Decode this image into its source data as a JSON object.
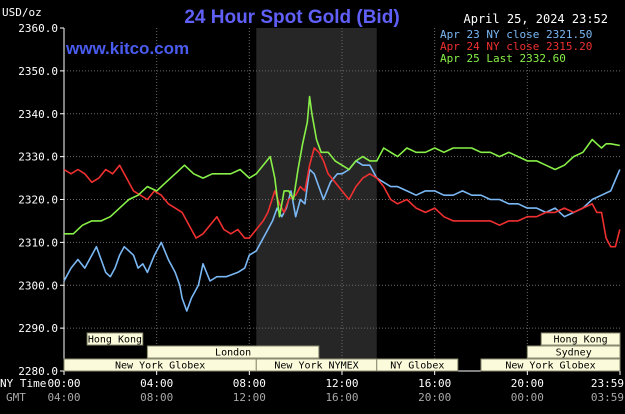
{
  "chart_data": {
    "type": "line",
    "title": "24 Hour Spot Gold (Bid)",
    "site": "www.kitco.com",
    "timestamp": "April 25, 2024 23:52",
    "unit_label": "USD/oz",
    "ylim": [
      2280,
      2360
    ],
    "y_ticks": [
      "2360.0",
      "2350.0",
      "2340.0",
      "2330.0",
      "2320.0",
      "2310.0",
      "2300.0",
      "2290.0",
      "2280.0"
    ],
    "x_label_primary": "NY Time",
    "x_label_secondary": "GMT",
    "x_ticks_ny": [
      "00:00",
      "04:00",
      "08:00",
      "12:00",
      "16:00",
      "20:00",
      "23:59"
    ],
    "x_ticks_gmt": [
      "04:00",
      "08:00",
      "12:00",
      "16:00",
      "20:00",
      "00:00",
      "03:59"
    ],
    "legend_position": "top-right",
    "grid": true,
    "highlight_band_hours": [
      8.3,
      13.5
    ],
    "sessions": [
      {
        "label": "Hong Kong",
        "row": 1,
        "start": 1.0,
        "end": 3.4
      },
      {
        "label": "Hong Kong",
        "row": 1,
        "start": 20.6,
        "end": 24.0
      },
      {
        "label": "London",
        "row": 2,
        "start": 3.6,
        "end": 11.0
      },
      {
        "label": "Sydney",
        "row": 2,
        "start": 20.0,
        "end": 24.0
      },
      {
        "label": "New York Globex",
        "row": 3,
        "start": 0.0,
        "end": 8.3
      },
      {
        "label": "New York NYMEX",
        "row": 3,
        "start": 8.3,
        "end": 13.5
      },
      {
        "label": "NY Globex",
        "row": 3,
        "start": 13.5,
        "end": 17.0
      },
      {
        "label": "New York Globex",
        "row": 3,
        "start": 18.0,
        "end": 24.0
      }
    ],
    "series": [
      {
        "name": "Apr 23 NY close 2321.50",
        "color": "#7ab8f5",
        "points": [
          [
            0.0,
            2301
          ],
          [
            0.3,
            2304
          ],
          [
            0.6,
            2306
          ],
          [
            0.9,
            2304
          ],
          [
            1.2,
            2307
          ],
          [
            1.4,
            2309
          ],
          [
            1.6,
            2306
          ],
          [
            1.8,
            2303
          ],
          [
            2.0,
            2302
          ],
          [
            2.2,
            2304
          ],
          [
            2.4,
            2307
          ],
          [
            2.6,
            2309
          ],
          [
            2.8,
            2308
          ],
          [
            3.0,
            2307
          ],
          [
            3.2,
            2304
          ],
          [
            3.4,
            2305
          ],
          [
            3.6,
            2303
          ],
          [
            3.9,
            2307
          ],
          [
            4.2,
            2310
          ],
          [
            4.5,
            2306
          ],
          [
            4.8,
            2303
          ],
          [
            5.0,
            2300
          ],
          [
            5.1,
            2297
          ],
          [
            5.3,
            2294
          ],
          [
            5.5,
            2297
          ],
          [
            5.8,
            2300
          ],
          [
            6.0,
            2305
          ],
          [
            6.3,
            2301
          ],
          [
            6.6,
            2302
          ],
          [
            7.0,
            2302
          ],
          [
            7.5,
            2303
          ],
          [
            7.8,
            2304
          ],
          [
            8.0,
            2307
          ],
          [
            8.3,
            2308
          ],
          [
            8.6,
            2311
          ],
          [
            8.8,
            2313
          ],
          [
            9.0,
            2315
          ],
          [
            9.2,
            2318
          ],
          [
            9.4,
            2316
          ],
          [
            9.6,
            2318
          ],
          [
            9.8,
            2322
          ],
          [
            10.0,
            2316
          ],
          [
            10.2,
            2320
          ],
          [
            10.4,
            2319
          ],
          [
            10.6,
            2327
          ],
          [
            10.8,
            2326
          ],
          [
            11.0,
            2323
          ],
          [
            11.2,
            2320
          ],
          [
            11.5,
            2324
          ],
          [
            11.8,
            2326
          ],
          [
            12.0,
            2326
          ],
          [
            12.3,
            2327
          ],
          [
            12.6,
            2329
          ],
          [
            12.9,
            2328
          ],
          [
            13.2,
            2328
          ],
          [
            13.5,
            2325
          ],
          [
            13.8,
            2324
          ],
          [
            14.1,
            2323
          ],
          [
            14.4,
            2323
          ],
          [
            14.8,
            2322
          ],
          [
            15.2,
            2321
          ],
          [
            15.6,
            2322
          ],
          [
            16.0,
            2322
          ],
          [
            16.4,
            2321
          ],
          [
            16.8,
            2321
          ],
          [
            17.2,
            2322
          ],
          [
            17.6,
            2321
          ],
          [
            18.0,
            2321
          ],
          [
            18.4,
            2320
          ],
          [
            18.8,
            2320
          ],
          [
            19.2,
            2319
          ],
          [
            19.6,
            2319
          ],
          [
            20.0,
            2318
          ],
          [
            20.4,
            2318
          ],
          [
            20.8,
            2317
          ],
          [
            21.2,
            2318
          ],
          [
            21.6,
            2316
          ],
          [
            22.0,
            2317
          ],
          [
            22.4,
            2318
          ],
          [
            22.8,
            2320
          ],
          [
            23.2,
            2321
          ],
          [
            23.6,
            2322
          ],
          [
            23.99,
            2327
          ]
        ]
      },
      {
        "name": "Apr 24 NY close 2315.20",
        "color": "#f03030",
        "points": [
          [
            0.0,
            2327
          ],
          [
            0.3,
            2326
          ],
          [
            0.6,
            2327
          ],
          [
            0.9,
            2326
          ],
          [
            1.2,
            2324
          ],
          [
            1.5,
            2325
          ],
          [
            1.8,
            2327
          ],
          [
            2.1,
            2326
          ],
          [
            2.4,
            2328
          ],
          [
            2.7,
            2325
          ],
          [
            3.0,
            2322
          ],
          [
            3.3,
            2321
          ],
          [
            3.6,
            2320
          ],
          [
            3.9,
            2322
          ],
          [
            4.2,
            2321
          ],
          [
            4.5,
            2319
          ],
          [
            4.8,
            2318
          ],
          [
            5.1,
            2317
          ],
          [
            5.4,
            2314
          ],
          [
            5.7,
            2311
          ],
          [
            6.0,
            2312
          ],
          [
            6.3,
            2314
          ],
          [
            6.6,
            2316
          ],
          [
            6.9,
            2313
          ],
          [
            7.2,
            2312
          ],
          [
            7.5,
            2313
          ],
          [
            7.8,
            2311
          ],
          [
            8.0,
            2311
          ],
          [
            8.3,
            2313
          ],
          [
            8.6,
            2315
          ],
          [
            8.8,
            2317
          ],
          [
            9.1,
            2322
          ],
          [
            9.3,
            2319
          ],
          [
            9.5,
            2317
          ],
          [
            9.7,
            2320
          ],
          [
            10.0,
            2321
          ],
          [
            10.2,
            2323
          ],
          [
            10.4,
            2322
          ],
          [
            10.6,
            2328
          ],
          [
            10.8,
            2332
          ],
          [
            11.0,
            2331
          ],
          [
            11.2,
            2329
          ],
          [
            11.4,
            2326
          ],
          [
            11.7,
            2324
          ],
          [
            12.0,
            2322
          ],
          [
            12.3,
            2320
          ],
          [
            12.6,
            2323
          ],
          [
            12.9,
            2325
          ],
          [
            13.2,
            2326
          ],
          [
            13.5,
            2325
          ],
          [
            13.8,
            2323
          ],
          [
            14.1,
            2320
          ],
          [
            14.4,
            2319
          ],
          [
            14.8,
            2320
          ],
          [
            15.2,
            2318
          ],
          [
            15.6,
            2317
          ],
          [
            16.0,
            2318
          ],
          [
            16.4,
            2316
          ],
          [
            16.8,
            2315
          ],
          [
            17.2,
            2315
          ],
          [
            17.6,
            2315
          ],
          [
            18.0,
            2315
          ],
          [
            18.4,
            2315
          ],
          [
            18.8,
            2314
          ],
          [
            19.2,
            2315
          ],
          [
            19.6,
            2315
          ],
          [
            20.0,
            2316
          ],
          [
            20.4,
            2316
          ],
          [
            20.8,
            2317
          ],
          [
            21.2,
            2317
          ],
          [
            21.6,
            2318
          ],
          [
            22.0,
            2317
          ],
          [
            22.4,
            2318
          ],
          [
            22.8,
            2319
          ],
          [
            23.0,
            2317
          ],
          [
            23.2,
            2317
          ],
          [
            23.4,
            2311
          ],
          [
            23.6,
            2309
          ],
          [
            23.8,
            2309
          ],
          [
            23.99,
            2313
          ]
        ]
      },
      {
        "name": "Apr 25 Last 2332.60",
        "color": "#88f048",
        "points": [
          [
            0.0,
            2312
          ],
          [
            0.4,
            2312
          ],
          [
            0.8,
            2314
          ],
          [
            1.2,
            2315
          ],
          [
            1.6,
            2315
          ],
          [
            2.0,
            2316
          ],
          [
            2.4,
            2318
          ],
          [
            2.8,
            2320
          ],
          [
            3.2,
            2321
          ],
          [
            3.6,
            2323
          ],
          [
            4.0,
            2322
          ],
          [
            4.4,
            2324
          ],
          [
            4.8,
            2326
          ],
          [
            5.2,
            2328
          ],
          [
            5.6,
            2326
          ],
          [
            6.0,
            2325
          ],
          [
            6.4,
            2326
          ],
          [
            6.8,
            2326
          ],
          [
            7.2,
            2326
          ],
          [
            7.6,
            2327
          ],
          [
            8.0,
            2325
          ],
          [
            8.3,
            2326
          ],
          [
            8.6,
            2328
          ],
          [
            8.9,
            2330
          ],
          [
            9.1,
            2325
          ],
          [
            9.3,
            2316
          ],
          [
            9.5,
            2322
          ],
          [
            9.7,
            2322
          ],
          [
            9.9,
            2320
          ],
          [
            10.1,
            2327
          ],
          [
            10.3,
            2333
          ],
          [
            10.5,
            2338
          ],
          [
            10.6,
            2344
          ],
          [
            10.7,
            2340
          ],
          [
            10.9,
            2334
          ],
          [
            11.1,
            2331
          ],
          [
            11.4,
            2331
          ],
          [
            11.7,
            2329
          ],
          [
            12.0,
            2328
          ],
          [
            12.3,
            2327
          ],
          [
            12.6,
            2329
          ],
          [
            12.9,
            2330
          ],
          [
            13.2,
            2329
          ],
          [
            13.5,
            2329
          ],
          [
            13.8,
            2332
          ],
          [
            14.1,
            2331
          ],
          [
            14.4,
            2330
          ],
          [
            14.8,
            2332
          ],
          [
            15.2,
            2331
          ],
          [
            15.6,
            2331
          ],
          [
            16.0,
            2332
          ],
          [
            16.4,
            2331
          ],
          [
            16.8,
            2332
          ],
          [
            17.2,
            2332
          ],
          [
            17.6,
            2332
          ],
          [
            18.0,
            2331
          ],
          [
            18.4,
            2331
          ],
          [
            18.8,
            2330
          ],
          [
            19.2,
            2331
          ],
          [
            19.6,
            2330
          ],
          [
            20.0,
            2329
          ],
          [
            20.4,
            2329
          ],
          [
            20.8,
            2328
          ],
          [
            21.2,
            2327
          ],
          [
            21.6,
            2328
          ],
          [
            22.0,
            2330
          ],
          [
            22.4,
            2331
          ],
          [
            22.8,
            2334
          ],
          [
            23.0,
            2333
          ],
          [
            23.2,
            2332
          ],
          [
            23.4,
            2333
          ],
          [
            23.6,
            2333
          ],
          [
            23.99,
            2332.6
          ]
        ]
      }
    ]
  }
}
